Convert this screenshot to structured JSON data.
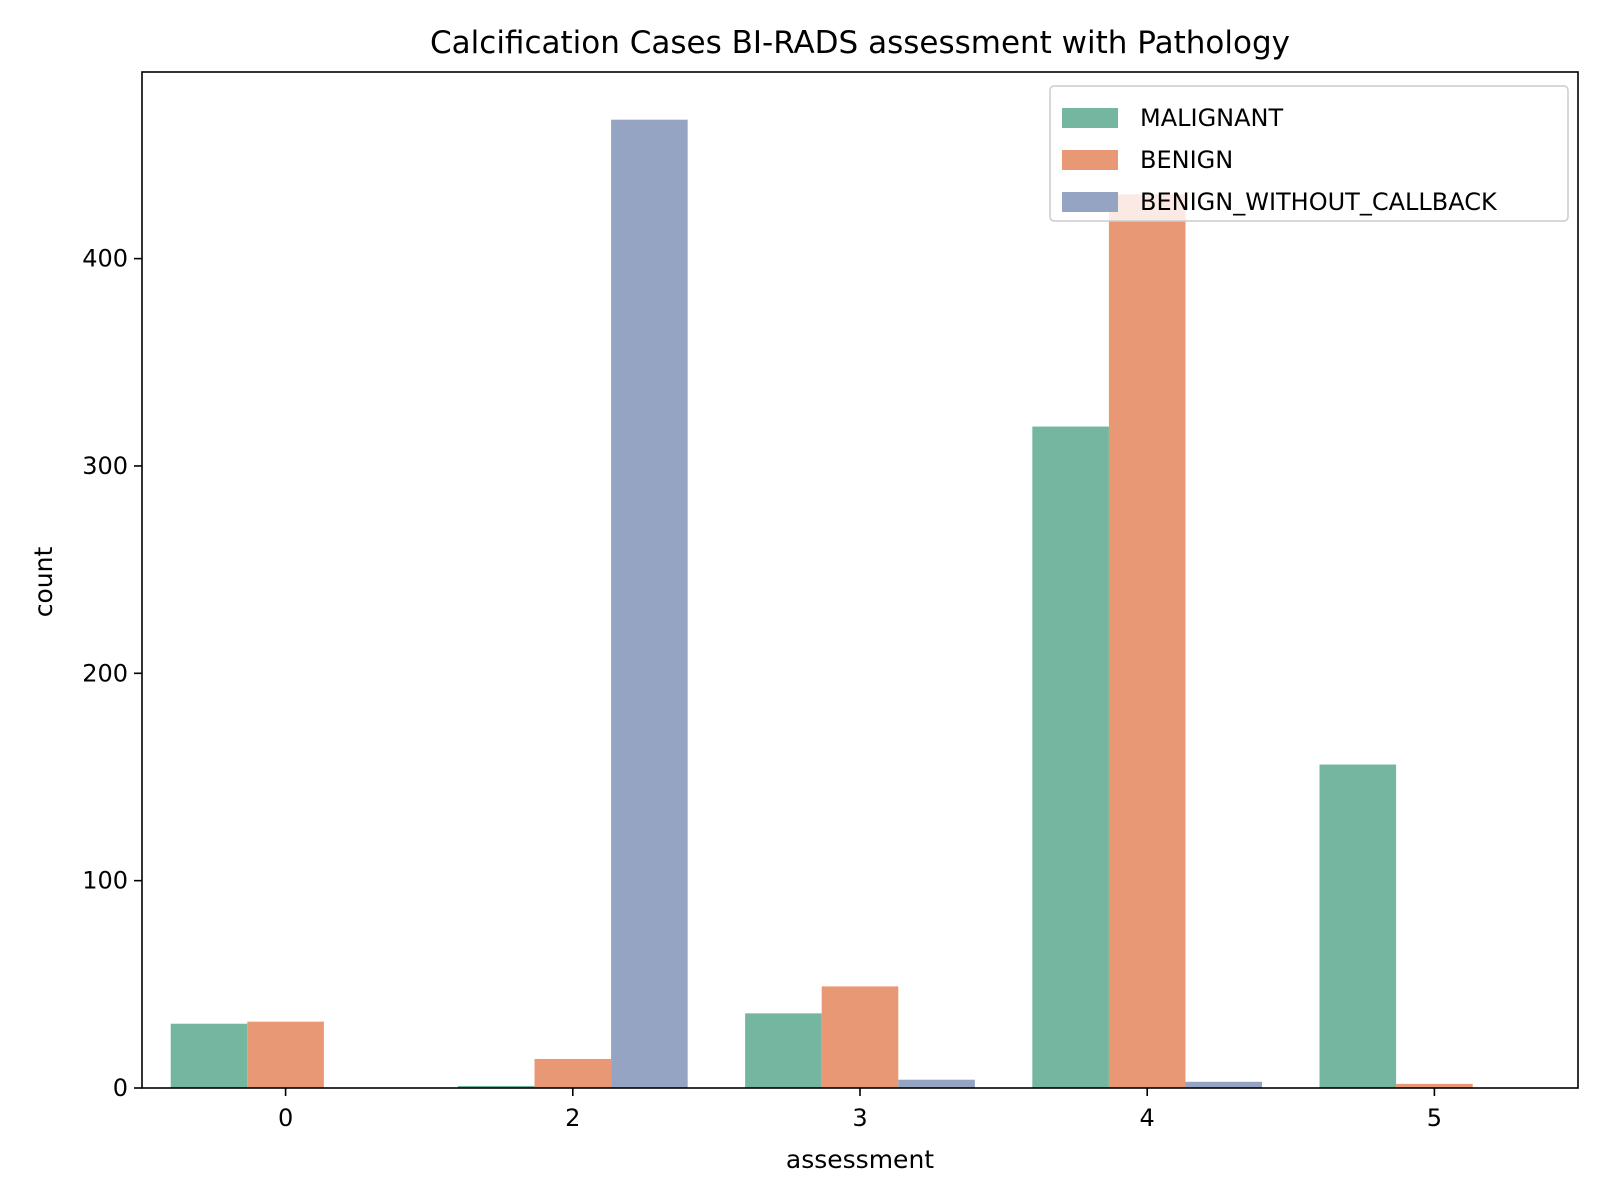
{
  "chart_data": {
    "type": "bar",
    "title": "Calcification Cases BI-RADS assessment with Pathology",
    "xlabel": "assessment",
    "ylabel": "count",
    "categories": [
      "0",
      "2",
      "3",
      "4",
      "5"
    ],
    "series": [
      {
        "name": "MALIGNANT",
        "color": "#75b6a0",
        "values": [
          31,
          1,
          36,
          319,
          156
        ]
      },
      {
        "name": "BENIGN",
        "color": "#e99875",
        "values": [
          32,
          14,
          49,
          431,
          2
        ]
      },
      {
        "name": "BENIGN_WITHOUT_CALLBACK",
        "color": "#96a4c3",
        "values": [
          0,
          467,
          4,
          3,
          0
        ]
      }
    ],
    "yticks": [
      0,
      100,
      200,
      300,
      400
    ],
    "ylim": [
      0,
      490
    ],
    "legend_position": "upper right",
    "grid": false
  }
}
